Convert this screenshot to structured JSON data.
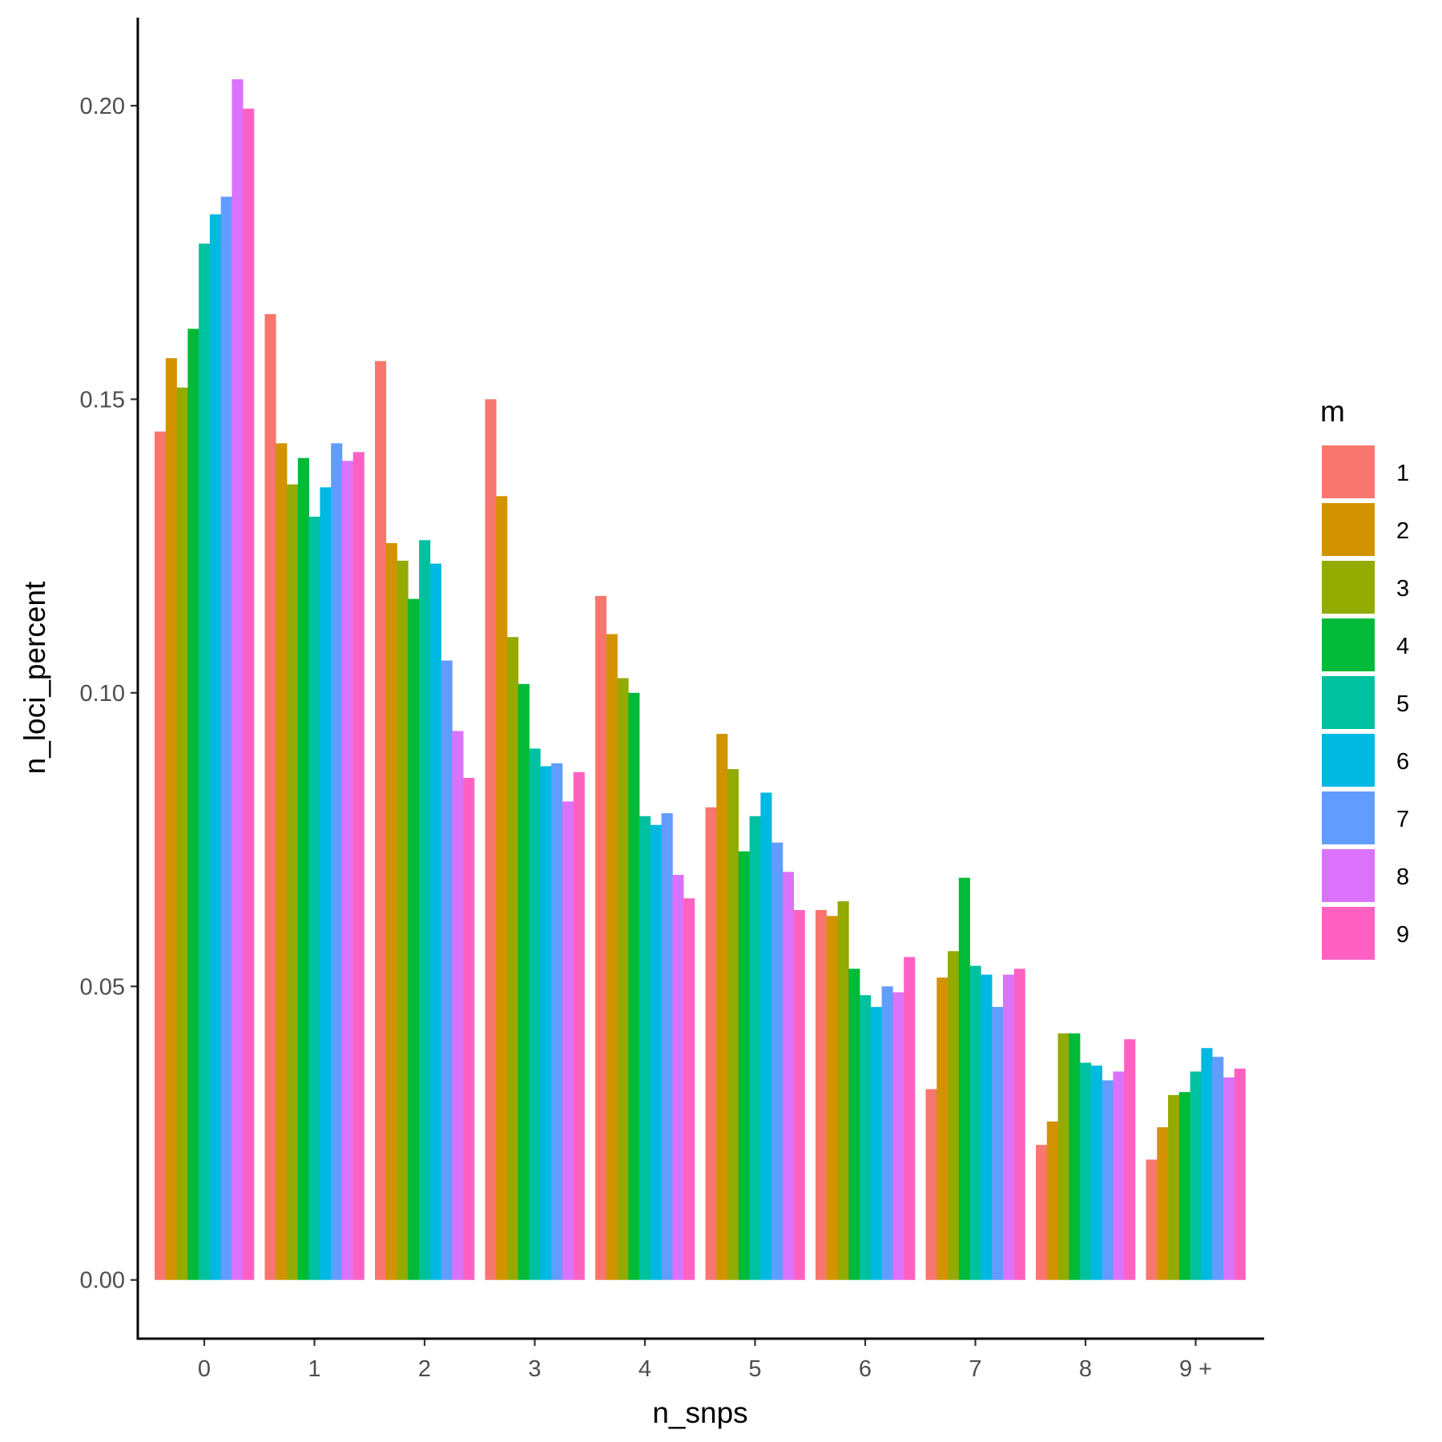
{
  "chart_data": {
    "type": "bar",
    "xlabel": "n_snps",
    "ylabel": "n_loci_percent",
    "categories": [
      "0",
      "1",
      "2",
      "3",
      "4",
      "5",
      "6",
      "7",
      "8",
      "9 +"
    ],
    "ylim": [
      -0.01,
      0.215
    ],
    "yticks": [
      0.0,
      0.05,
      0.1,
      0.15,
      0.2
    ],
    "ytick_labels": [
      "0.00",
      "0.05",
      "0.10",
      "0.15",
      "0.20"
    ],
    "grid": false,
    "legend": {
      "title": "m",
      "position": "right"
    },
    "series": [
      {
        "name": "1",
        "color": "#F8766D",
        "values": [
          0.1445,
          0.1645,
          0.1565,
          0.15,
          0.1165,
          0.0805,
          0.063,
          0.0325,
          0.023,
          0.0205
        ]
      },
      {
        "name": "2",
        "color": "#D39200",
        "values": [
          0.157,
          0.1425,
          0.1255,
          0.1335,
          0.11,
          0.093,
          0.062,
          0.0515,
          0.027,
          0.026
        ]
      },
      {
        "name": "3",
        "color": "#93AA00",
        "values": [
          0.152,
          0.1355,
          0.1225,
          0.1095,
          0.1025,
          0.087,
          0.0645,
          0.056,
          0.042,
          0.0315
        ]
      },
      {
        "name": "4",
        "color": "#00BA38",
        "values": [
          0.162,
          0.14,
          0.116,
          0.1015,
          0.1,
          0.073,
          0.053,
          0.0685,
          0.042,
          0.032
        ]
      },
      {
        "name": "5",
        "color": "#00C19F",
        "values": [
          0.1765,
          0.13,
          0.126,
          0.0905,
          0.079,
          0.079,
          0.0485,
          0.0535,
          0.037,
          0.0355
        ]
      },
      {
        "name": "6",
        "color": "#00B9E3",
        "values": [
          0.1815,
          0.135,
          0.122,
          0.0875,
          0.0775,
          0.083,
          0.0465,
          0.052,
          0.0365,
          0.0395
        ]
      },
      {
        "name": "7",
        "color": "#619CFF",
        "values": [
          0.1845,
          0.1425,
          0.1055,
          0.088,
          0.0795,
          0.0745,
          0.05,
          0.0465,
          0.034,
          0.038
        ]
      },
      {
        "name": "8",
        "color": "#DB72FB",
        "values": [
          0.2045,
          0.1395,
          0.0935,
          0.0815,
          0.069,
          0.0695,
          0.049,
          0.052,
          0.0355,
          0.0345
        ]
      },
      {
        "name": "9",
        "color": "#FF61C3",
        "values": [
          0.1995,
          0.141,
          0.0855,
          0.0865,
          0.065,
          0.063,
          0.055,
          0.053,
          0.041,
          0.036
        ]
      }
    ]
  }
}
